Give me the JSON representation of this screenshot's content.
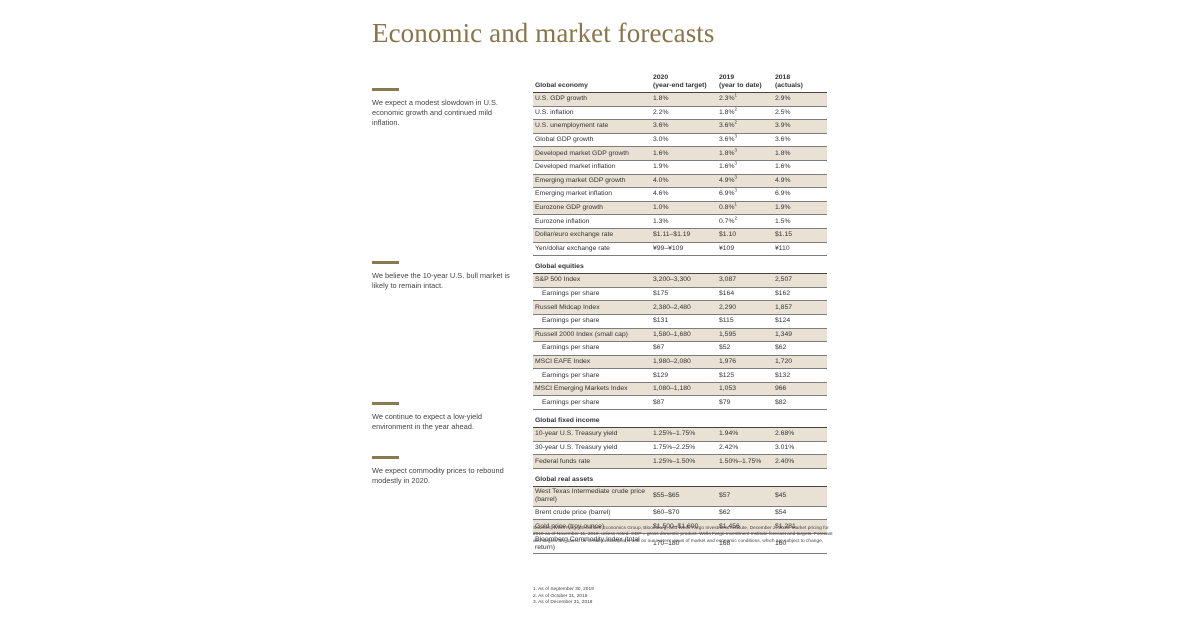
{
  "title": "Economic and market forecasts",
  "notes": [
    "We expect a modest slowdown in U.S. economic growth and continued mild inflation.",
    "We believe the 10-year U.S. bull market is likely to remain intact.",
    "We continue to expect a low-yield environment in the year ahead.",
    "We expect commodity prices to rebound modestly in 2020."
  ],
  "header": {
    "col1": "Global economy",
    "col2a": "2020",
    "col2b": "(year-end target)",
    "col3a": "2019",
    "col3b": "(year to date)",
    "col4a": "2018",
    "col4b": "(actuals)"
  },
  "economy_rows": [
    [
      "U.S. GDP growth",
      "1.8%",
      "2.3%",
      "1",
      "2.9%"
    ],
    [
      "U.S. inflation",
      "2.2%",
      "1.8%",
      "2",
      "2.5%"
    ],
    [
      "U.S. unemployment rate",
      "3.6%",
      "3.6%",
      "2",
      "3.9%"
    ],
    [
      "Global GDP growth",
      "3.0%",
      "3.6%",
      "3",
      "3.6%"
    ],
    [
      "Developed market GDP growth",
      "1.6%",
      "1.8%",
      "3",
      "1.8%"
    ],
    [
      "Developed market inflation",
      "1.9%",
      "1.6%",
      "3",
      "1.6%"
    ],
    [
      "Emerging market GDP growth",
      "4.0%",
      "4.9%",
      "3",
      "4.9%"
    ],
    [
      "Emerging market inflation",
      "4.6%",
      "6.9%",
      "3",
      "6.9%"
    ],
    [
      "Eurozone GDP growth",
      "1.0%",
      "0.8%",
      "1",
      "1.9%"
    ],
    [
      "Eurozone inflation",
      "1.3%",
      "0.7%",
      "2",
      "1.5%"
    ],
    [
      "Dollar/euro exchange rate",
      "$1.11–$1.19",
      "$1.10",
      "",
      "$1.15"
    ],
    [
      "Yen/dollar exchange rate",
      "¥99–¥109",
      "¥109",
      "",
      "¥110"
    ]
  ],
  "equities_title": "Global equities",
  "equities_rows": [
    [
      "S&P 500 Index",
      "3,200–3,300",
      "3,087",
      "2,507"
    ],
    [
      "Earnings per share",
      "$175",
      "$164",
      "$162"
    ],
    [
      "Russell Midcap Index",
      "2,380–2,480",
      "2,290",
      "1,857"
    ],
    [
      "Earnings per share",
      "$131",
      "$115",
      "$124"
    ],
    [
      "Russell 2000 Index (small cap)",
      "1,580–1,680",
      "1,595",
      "1,349"
    ],
    [
      "Earnings per share",
      "$67",
      "$52",
      "$62"
    ],
    [
      "MSCI EAFE Index",
      "1,980–2,080",
      "1,976",
      "1,720"
    ],
    [
      "Earnings per share",
      "$129",
      "$125",
      "$132"
    ],
    [
      "MSCI Emerging Markets Index",
      "1,080–1,180",
      "1,053",
      "966"
    ],
    [
      "Earnings per share",
      "$87",
      "$79",
      "$82"
    ]
  ],
  "fixed_title": "Global fixed income",
  "fixed_rows": [
    [
      "10-year U.S. Treasury yield",
      "1.25%–1.75%",
      "1.94%",
      "2.68%"
    ],
    [
      "30-year U.S. Treasury yield",
      "1.75%–2.25%",
      "2.42%",
      "3.01%"
    ],
    [
      "Federal funds rate",
      "1.25%–1.50%",
      "1.50%–1.75%",
      "2.40%"
    ]
  ],
  "real_title": "Global real assets",
  "real_rows": [
    [
      "West Texas Intermediate crude price (barrel)",
      "$55–$65",
      "$57",
      "$45"
    ],
    [
      "Brent crude price (barrel)",
      "$60–$70",
      "$62",
      "$54"
    ],
    [
      "Gold price (troy ounce)",
      "$1,500–$1,600",
      "$1,456",
      "$1,281"
    ],
    [
      "Bloomberg Commodity Index (total return)",
      "170–180",
      "168",
      "160"
    ]
  ],
  "sources": "Sources: Wells Fargo Securities Economics Group, Bloomberg, and Wells Fargo Investment Institute, December 2, 2019. Market pricing for 2019 as of November 11, 2019, unless noted. GDP = gross domestic product. Wells Fargo Investment Institute forecast and targets. Forecast and targets are based on certain assumptions and on our current views of market and economic conditions, which are subject to change.",
  "footnotes": [
    "1. As of September 30, 2019",
    "2. As of October 31, 2019",
    "3. As of December 31, 2018"
  ],
  "colors": {
    "title": "#8a7548",
    "accent_bar": "#8b7a50",
    "row_shade": "#e8e1d4"
  }
}
